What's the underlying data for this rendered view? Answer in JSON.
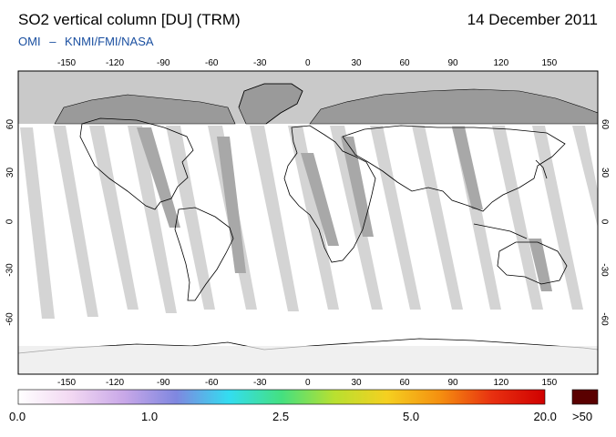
{
  "header": {
    "title": "SO2 vertical column [DU] (TRM)",
    "date": "14 December 2011",
    "credit_instrument": "OMI",
    "credit_agencies": "KNMI/FMI/NASA"
  },
  "map": {
    "lon_ticks": [
      "-150",
      "-120",
      "-90",
      "-60",
      "-30",
      "0",
      "30",
      "60",
      "90",
      "120",
      "150"
    ],
    "lat_ticks": [
      "60",
      "30",
      "0",
      "-30",
      "-60"
    ],
    "colors": {
      "no_data": "#c9c9c9",
      "land_no_data": "#9a9a9a",
      "swath_gap": "#d2d2d2",
      "swath_dark": "#a8a8a8",
      "coast": "#000000"
    }
  },
  "colorbar": {
    "labels": [
      "0.0",
      "1.0",
      "2.5",
      "5.0",
      "20.0"
    ],
    "overflow_label": ">50",
    "gradient": [
      "#ffffff",
      "#f2d8f2",
      "#c9a8e8",
      "#7f87e0",
      "#33ddf0",
      "#44e080",
      "#b8e030",
      "#f5d020",
      "#f59010",
      "#e83010",
      "#d00000"
    ],
    "overflow_color": "#5a0000"
  }
}
